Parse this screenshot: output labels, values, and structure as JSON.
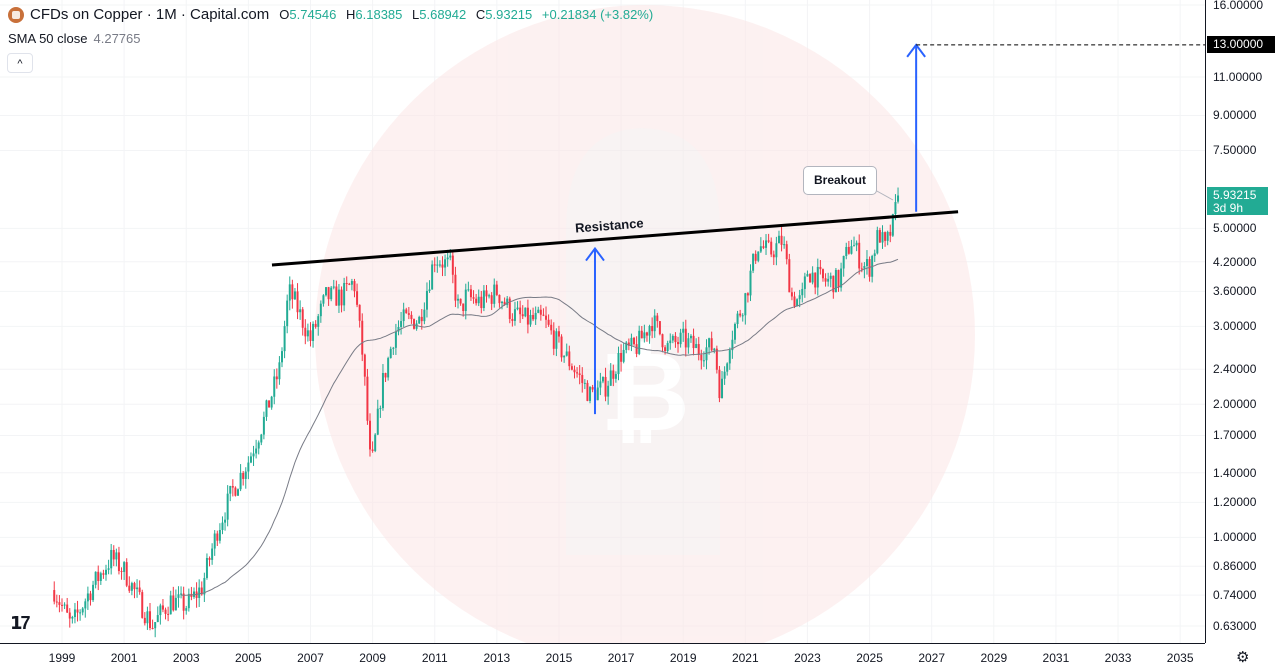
{
  "header": {
    "symbol": "CFDs on Copper · 1M · Capital.com",
    "open_label": "O",
    "open": "5.74546",
    "high_label": "H",
    "high": "6.18385",
    "low_label": "L",
    "low": "5.68942",
    "close_label": "C",
    "close": "5.93215",
    "change": "+0.21834 (+3.82%)",
    "sma_label": "SMA 50 close",
    "sma_value": "4.27765",
    "collapse_icon": "chevron-up-icon"
  },
  "price_axis": {
    "ticks": [
      "16.00000",
      "13.00000",
      "11.00000",
      "9.00000",
      "7.50000",
      "5.00000",
      "4.20000",
      "3.60000",
      "3.00000",
      "2.40000",
      "2.00000",
      "1.70000",
      "1.40000",
      "1.20000",
      "1.00000",
      "0.86000",
      "0.74000",
      "0.63000"
    ],
    "target_tag": "13.00000",
    "last_price_tag": "5.93215",
    "countdown": "3d 9h",
    "scale": "log"
  },
  "time_axis": {
    "ticks": [
      "1999",
      "2001",
      "2003",
      "2005",
      "2007",
      "2009",
      "2011",
      "2013",
      "2015",
      "2017",
      "2019",
      "2021",
      "2023",
      "2025",
      "2027",
      "2029",
      "2031",
      "2033",
      "2035"
    ]
  },
  "annotations": {
    "resistance_label": "Resistance",
    "breakout_label": "Breakout",
    "resistance_line": {
      "from": [
        2005.76,
        4.13
      ],
      "to": [
        2027.85,
        5.45
      ]
    },
    "measured_move_1": {
      "t": 2016.16,
      "from": 1.9,
      "to": 4.5
    },
    "measured_move_2": {
      "t": 2026.5,
      "from": 5.45,
      "to": 13.0
    },
    "target_level": 13.0
  },
  "colors": {
    "up": "#22ab94",
    "down": "#f23645",
    "sma": "#787b86",
    "arrow": "#2962ff",
    "watermark": "#fbe3e3"
  },
  "chart_data": {
    "type": "candlestick",
    "title": "CFDs on Copper · 1M · Capital.com",
    "interval": "1M",
    "ylim": [
      0.6,
      16.5
    ],
    "xlim": [
      1998.5,
      2036.5
    ],
    "close_path": [
      [
        1998.75,
        0.76
      ],
      [
        1999.3,
        0.63
      ],
      [
        2000,
        0.78
      ],
      [
        2000.6,
        0.9
      ],
      [
        2001,
        0.84
      ],
      [
        2001.9,
        0.63
      ],
      [
        2002.5,
        0.72
      ],
      [
        2003,
        0.7
      ],
      [
        2003.5,
        0.77
      ],
      [
        2004,
        1.04
      ],
      [
        2004.5,
        1.28
      ],
      [
        2005,
        1.49
      ],
      [
        2005.5,
        1.84
      ],
      [
        2006,
        2.4
      ],
      [
        2006.3,
        3.6
      ],
      [
        2006.5,
        3.4
      ],
      [
        2007,
        2.8
      ],
      [
        2007.5,
        3.5
      ],
      [
        2008,
        3.5
      ],
      [
        2008.4,
        3.8
      ],
      [
        2008.7,
        2.5
      ],
      [
        2008.95,
        1.4
      ],
      [
        2009.3,
        2.2
      ],
      [
        2009.7,
        2.9
      ],
      [
        2010,
        3.1
      ],
      [
        2010.5,
        3.1
      ],
      [
        2011,
        4.3
      ],
      [
        2011.5,
        4.1
      ],
      [
        2011.8,
        3.2
      ],
      [
        2012,
        3.5
      ],
      [
        2012.5,
        3.4
      ],
      [
        2013,
        3.6
      ],
      [
        2013.5,
        3.2
      ],
      [
        2014,
        3.1
      ],
      [
        2014.5,
        3.1
      ],
      [
        2015,
        2.7
      ],
      [
        2015.5,
        2.4
      ],
      [
        2016,
        2.1
      ],
      [
        2016.5,
        2.2
      ],
      [
        2017,
        2.6
      ],
      [
        2017.5,
        2.7
      ],
      [
        2018,
        3.1
      ],
      [
        2018.5,
        2.7
      ],
      [
        2019,
        2.8
      ],
      [
        2019.5,
        2.65
      ],
      [
        2020,
        2.7
      ],
      [
        2020.2,
        2.1
      ],
      [
        2020.5,
        2.8
      ],
      [
        2021,
        3.5
      ],
      [
        2021.4,
        4.6
      ],
      [
        2021.8,
        4.4
      ],
      [
        2022.2,
        4.7
      ],
      [
        2022.5,
        3.5
      ],
      [
        2022.8,
        3.4
      ],
      [
        2023,
        4.0
      ],
      [
        2023.5,
        3.8
      ],
      [
        2024,
        3.8
      ],
      [
        2024.4,
        4.7
      ],
      [
        2024.8,
        4.1
      ],
      [
        2025,
        4.1
      ],
      [
        2025.3,
        4.9
      ],
      [
        2025.5,
        4.5
      ],
      [
        2025.75,
        5.1
      ],
      [
        2025.92,
        5.93215
      ]
    ],
    "last_candle": {
      "open": 5.74546,
      "high": 6.18385,
      "low": 5.68942,
      "close": 5.93215
    },
    "indicators": [
      {
        "name": "SMA 50 close",
        "period": 50,
        "last": 4.27765
      }
    ]
  }
}
